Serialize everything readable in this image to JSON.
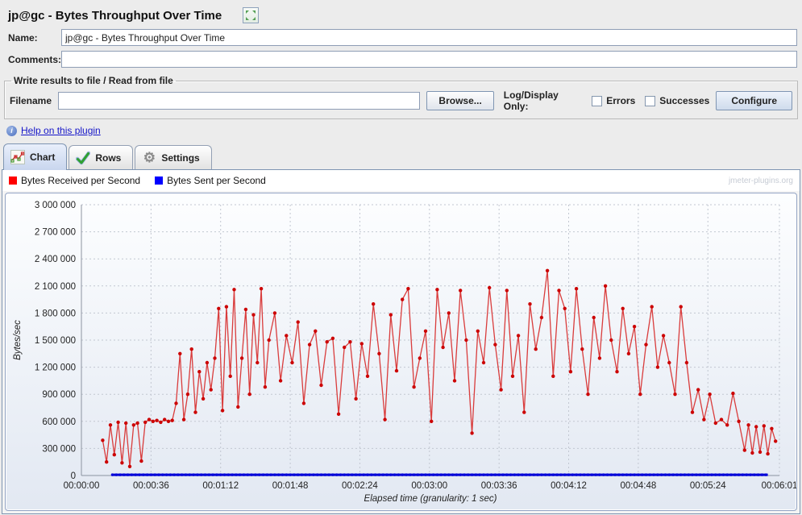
{
  "window": {
    "title": "jp@gc - Bytes Throughput Over Time"
  },
  "form": {
    "name_label": "Name:",
    "name_value": "jp@gc - Bytes Throughput Over Time",
    "comments_label": "Comments:",
    "comments_value": "",
    "file_group": {
      "legend": "Write results to file / Read from file",
      "filename_label": "Filename",
      "filename_value": "",
      "browse_label": "Browse...",
      "log_display_label": "Log/Display Only:",
      "errors_label": "Errors",
      "successes_label": "Successes",
      "configure_label": "Configure"
    },
    "help_link": "Help on this plugin"
  },
  "tabs": [
    {
      "label": "Chart",
      "selected": true
    },
    {
      "label": "Rows",
      "selected": false
    },
    {
      "label": "Settings",
      "selected": false
    }
  ],
  "watermark": "jmeter-plugins.org",
  "chart_data": {
    "type": "line",
    "xlabel": "Elapsed time (granularity: 1 sec)",
    "ylabel": "Bytes/sec",
    "ylim": [
      0,
      3000000
    ],
    "y_tick_step": 300000,
    "y_tick_labels": [
      "0",
      "300 000",
      "600 000",
      "900 000",
      "1 200 000",
      "1 500 000",
      "1 800 000",
      "2 100 000",
      "2 400 000",
      "2 700 000",
      "3 000 000"
    ],
    "xlim_seconds": [
      0,
      361
    ],
    "x_ticks": [
      {
        "t": 0,
        "label": "00:00:00"
      },
      {
        "t": 36,
        "label": "00:00:36"
      },
      {
        "t": 72,
        "label": "00:01:12"
      },
      {
        "t": 108,
        "label": "00:01:48"
      },
      {
        "t": 144,
        "label": "00:02:24"
      },
      {
        "t": 180,
        "label": "00:03:00"
      },
      {
        "t": 216,
        "label": "00:03:36"
      },
      {
        "t": 252,
        "label": "00:04:12"
      },
      {
        "t": 288,
        "label": "00:04:48"
      },
      {
        "t": 324,
        "label": "00:05:24"
      },
      {
        "t": 361,
        "label": "00:06:01"
      }
    ],
    "grid": true,
    "legend_position": "top-left",
    "series": [
      {
        "name": "Bytes Received per Second",
        "color": "#ff0000",
        "line_color": "#d93c3c",
        "point_color": "#cc0000",
        "points": [
          [
            11,
            390000
          ],
          [
            13,
            150000
          ],
          [
            15,
            560000
          ],
          [
            17,
            230000
          ],
          [
            19,
            590000
          ],
          [
            21,
            140000
          ],
          [
            23,
            580000
          ],
          [
            25,
            100000
          ],
          [
            27,
            560000
          ],
          [
            29,
            580000
          ],
          [
            31,
            160000
          ],
          [
            33,
            590000
          ],
          [
            35,
            620000
          ],
          [
            37,
            600000
          ],
          [
            39,
            610000
          ],
          [
            41,
            590000
          ],
          [
            43,
            620000
          ],
          [
            45,
            600000
          ],
          [
            47,
            610000
          ],
          [
            49,
            800000
          ],
          [
            51,
            1350000
          ],
          [
            53,
            620000
          ],
          [
            55,
            900000
          ],
          [
            57,
            1400000
          ],
          [
            59,
            700000
          ],
          [
            61,
            1150000
          ],
          [
            63,
            850000
          ],
          [
            65,
            1250000
          ],
          [
            67,
            950000
          ],
          [
            69,
            1300000
          ],
          [
            71,
            1850000
          ],
          [
            73,
            720000
          ],
          [
            75,
            1870000
          ],
          [
            77,
            1100000
          ],
          [
            79,
            2060000
          ],
          [
            81,
            760000
          ],
          [
            83,
            1300000
          ],
          [
            85,
            1840000
          ],
          [
            87,
            900000
          ],
          [
            89,
            1780000
          ],
          [
            91,
            1250000
          ],
          [
            93,
            2070000
          ],
          [
            95,
            980000
          ],
          [
            97,
            1500000
          ],
          [
            100,
            1800000
          ],
          [
            103,
            1050000
          ],
          [
            106,
            1550000
          ],
          [
            109,
            1250000
          ],
          [
            112,
            1700000
          ],
          [
            115,
            800000
          ],
          [
            118,
            1450000
          ],
          [
            121,
            1600000
          ],
          [
            124,
            1000000
          ],
          [
            127,
            1480000
          ],
          [
            130,
            1520000
          ],
          [
            133,
            680000
          ],
          [
            136,
            1420000
          ],
          [
            139,
            1480000
          ],
          [
            142,
            850000
          ],
          [
            145,
            1460000
          ],
          [
            148,
            1100000
          ],
          [
            151,
            1900000
          ],
          [
            154,
            1350000
          ],
          [
            157,
            620000
          ],
          [
            160,
            1780000
          ],
          [
            163,
            1160000
          ],
          [
            166,
            1950000
          ],
          [
            169,
            2070000
          ],
          [
            172,
            980000
          ],
          [
            175,
            1300000
          ],
          [
            178,
            1600000
          ],
          [
            181,
            600000
          ],
          [
            184,
            2060000
          ],
          [
            187,
            1420000
          ],
          [
            190,
            1800000
          ],
          [
            193,
            1050000
          ],
          [
            196,
            2050000
          ],
          [
            199,
            1500000
          ],
          [
            202,
            470000
          ],
          [
            205,
            1600000
          ],
          [
            208,
            1250000
          ],
          [
            211,
            2080000
          ],
          [
            214,
            1450000
          ],
          [
            217,
            950000
          ],
          [
            220,
            2050000
          ],
          [
            223,
            1100000
          ],
          [
            226,
            1550000
          ],
          [
            229,
            700000
          ],
          [
            232,
            1900000
          ],
          [
            235,
            1400000
          ],
          [
            238,
            1750000
          ],
          [
            241,
            2270000
          ],
          [
            244,
            1100000
          ],
          [
            247,
            2050000
          ],
          [
            250,
            1850000
          ],
          [
            253,
            1150000
          ],
          [
            256,
            2070000
          ],
          [
            259,
            1400000
          ],
          [
            262,
            900000
          ],
          [
            265,
            1750000
          ],
          [
            268,
            1300000
          ],
          [
            271,
            2100000
          ],
          [
            274,
            1500000
          ],
          [
            277,
            1150000
          ],
          [
            280,
            1850000
          ],
          [
            283,
            1350000
          ],
          [
            286,
            1650000
          ],
          [
            289,
            900000
          ],
          [
            292,
            1450000
          ],
          [
            295,
            1870000
          ],
          [
            298,
            1200000
          ],
          [
            301,
            1550000
          ],
          [
            304,
            1250000
          ],
          [
            307,
            900000
          ],
          [
            310,
            1870000
          ],
          [
            313,
            1250000
          ],
          [
            316,
            700000
          ],
          [
            319,
            950000
          ],
          [
            322,
            620000
          ],
          [
            325,
            900000
          ],
          [
            328,
            580000
          ],
          [
            331,
            620000
          ],
          [
            334,
            560000
          ],
          [
            337,
            910000
          ],
          [
            340,
            600000
          ],
          [
            343,
            280000
          ],
          [
            345,
            560000
          ],
          [
            347,
            250000
          ],
          [
            349,
            540000
          ],
          [
            351,
            260000
          ],
          [
            353,
            550000
          ],
          [
            355,
            240000
          ],
          [
            357,
            520000
          ],
          [
            359,
            380000
          ]
        ]
      },
      {
        "name": "Bytes Sent per Second",
        "color": "#0000ff",
        "line_color": "#0000cc",
        "point_color": "#0000dd",
        "constant_value": 8000,
        "t_start": 16,
        "t_end": 355,
        "point_interval": 2
      }
    ]
  }
}
